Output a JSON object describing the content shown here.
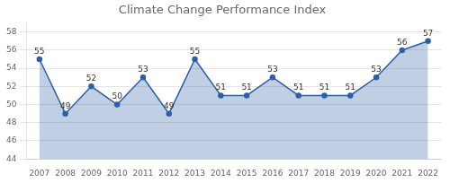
{
  "chart_data": {
    "type": "area",
    "title": "Climate Change Performance Index",
    "x": [
      2007,
      2008,
      2009,
      2010,
      2011,
      2012,
      2013,
      2014,
      2015,
      2016,
      2017,
      2018,
      2019,
      2020,
      2021,
      2022
    ],
    "values": [
      55,
      49,
      52,
      50,
      53,
      49,
      55,
      51,
      51,
      53,
      51,
      51,
      51,
      53,
      56,
      57
    ],
    "color": "#2E5FA3",
    "marker": "circle",
    "xlim": [
      2006.5,
      2022.5
    ],
    "xticks": [
      2007,
      2008,
      2009,
      2010,
      2011,
      2012,
      2013,
      2014,
      2015,
      2016,
      2017,
      2018,
      2019,
      2020,
      2021,
      2022
    ],
    "ylim": [
      44,
      59
    ],
    "yticks": [
      44,
      46,
      48,
      50,
      52,
      54,
      56,
      58
    ],
    "grid": true,
    "data_labels": true
  }
}
